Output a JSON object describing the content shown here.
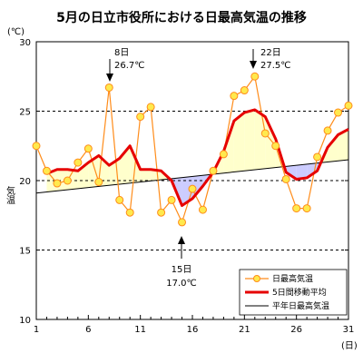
{
  "chart_data": {
    "type": "line",
    "title": "5月の日立市役所における日最高気温の推移",
    "ylabel": "気温",
    "yunit": "(℃)",
    "xunit": "(日)",
    "xlim": [
      1,
      31
    ],
    "ylim": [
      10,
      30
    ],
    "xticks": [
      1,
      6,
      11,
      16,
      21,
      26,
      31
    ],
    "yticks": [
      10,
      15,
      20,
      25,
      30
    ],
    "dashed_gridlines": [
      15,
      20,
      25
    ],
    "legend_position": "bottom-right",
    "series": [
      {
        "name": "日最高気温",
        "color": "#ff8c1a",
        "marker_color": "#ffe94d",
        "x": [
          1,
          2,
          3,
          4,
          5,
          6,
          7,
          8,
          9,
          10,
          11,
          12,
          13,
          14,
          15,
          16,
          17,
          18,
          19,
          20,
          21,
          22,
          23,
          24,
          25,
          26,
          27,
          28,
          29,
          30,
          31
        ],
        "values": [
          22.5,
          20.7,
          19.8,
          20.0,
          21.3,
          22.3,
          19.9,
          26.7,
          18.6,
          17.7,
          24.6,
          25.3,
          17.7,
          18.6,
          17.0,
          19.4,
          17.9,
          20.7,
          21.9,
          26.1,
          26.5,
          27.5,
          23.4,
          22.5,
          20.1,
          18.0,
          18.0,
          21.7,
          23.6,
          24.9,
          25.4
        ]
      },
      {
        "name": "5日間移動平均",
        "color": "#e60000",
        "x": [
          2,
          3,
          4,
          5,
          6,
          7,
          8,
          9,
          10,
          11,
          12,
          13,
          14,
          15,
          16,
          17,
          18,
          19,
          20,
          21,
          22,
          23,
          24,
          25,
          26,
          27,
          28,
          29,
          30,
          31
        ],
        "values": [
          20.5,
          20.8,
          20.8,
          20.7,
          21.3,
          21.8,
          21.1,
          21.6,
          22.5,
          20.8,
          20.8,
          20.7,
          20.0,
          18.2,
          18.7,
          19.6,
          20.6,
          22.1,
          24.3,
          24.9,
          25.1,
          24.6,
          23.0,
          20.6,
          20.1,
          20.2,
          20.7,
          22.4,
          23.3,
          23.7
        ]
      },
      {
        "name": "平年日最高気温",
        "color": "#000000",
        "x": [
          1,
          31
        ],
        "values": [
          19.1,
          21.5
        ]
      }
    ],
    "annotations": [
      {
        "date": "8日",
        "value": "26.7℃"
      },
      {
        "date": "22日",
        "value": "27.5℃"
      },
      {
        "date": "15日",
        "value": "17.0℃"
      }
    ],
    "colors": {
      "warm_fill": "#ffffcc",
      "cool_fill": "#ccccff"
    }
  }
}
